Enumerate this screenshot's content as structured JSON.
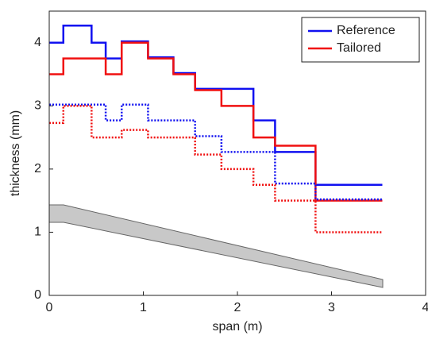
{
  "chart_data": {
    "type": "line",
    "step": "post",
    "x_label": "span (m)",
    "y_label": "thickness (mm)",
    "xlim": [
      0,
      4
    ],
    "ylim": [
      0,
      4.5
    ],
    "xticks": [
      0,
      1,
      2,
      3,
      4
    ],
    "yticks": [
      0,
      1,
      2,
      3,
      4
    ],
    "legend": "top-right",
    "series": [
      {
        "name": "Reference",
        "color": "#1010f0",
        "dash": "solid",
        "x": [
          0,
          0.15,
          0.45,
          0.6,
          0.77,
          1.05,
          1.32,
          1.55,
          2.17,
          2.4,
          2.83,
          3.54
        ],
        "values": [
          4.0,
          4.27,
          4.0,
          3.75,
          4.02,
          3.77,
          3.52,
          3.27,
          2.77,
          2.27,
          1.75,
          1.75
        ]
      },
      {
        "name": "Tailored",
        "color": "#f01010",
        "dash": "solid",
        "x": [
          0,
          0.15,
          0.6,
          0.77,
          1.05,
          1.32,
          1.55,
          1.83,
          2.17,
          2.4,
          2.83,
          3.54
        ],
        "values": [
          3.5,
          3.75,
          3.5,
          4.0,
          3.75,
          3.5,
          3.25,
          3.0,
          2.5,
          2.37,
          1.5,
          1.5
        ]
      },
      {
        "color": "#1010f0",
        "dash": "dotted",
        "x": [
          0,
          0.6,
          0.77,
          1.05,
          1.55,
          1.83,
          2.4,
          2.83,
          3.54
        ],
        "values": [
          3.02,
          2.77,
          3.02,
          2.77,
          2.52,
          2.27,
          1.77,
          1.52,
          1.52
        ]
      },
      {
        "color": "#f01010",
        "dash": "dotted",
        "x": [
          0,
          0.15,
          0.45,
          0.77,
          1.05,
          1.55,
          1.83,
          2.17,
          2.4,
          2.83,
          3.54
        ],
        "values": [
          2.73,
          3.0,
          2.5,
          2.62,
          2.5,
          2.23,
          2.0,
          1.75,
          1.5,
          1.0,
          1.0
        ]
      }
    ]
  }
}
